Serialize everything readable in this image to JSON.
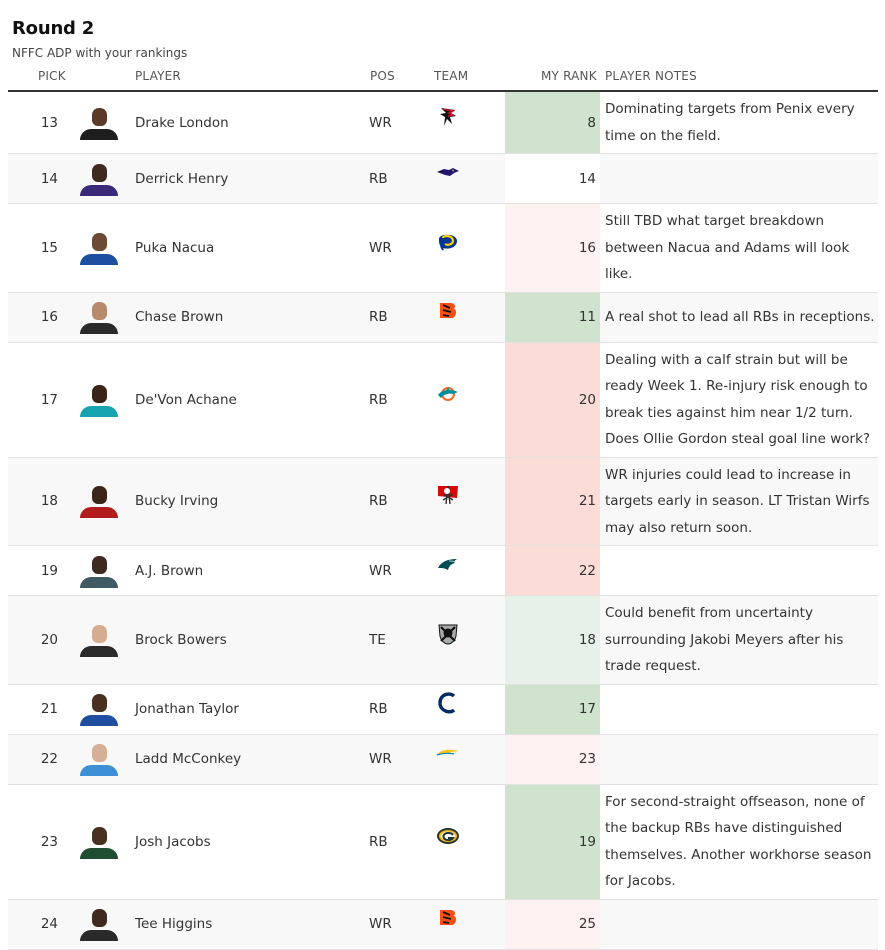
{
  "title": "Round 2",
  "subtitle": "NFFC ADP with your rankings",
  "headers": {
    "pick": "PICK",
    "player": "PLAYER",
    "pos": "POS",
    "team": "TEAM",
    "rank": "MY RANK",
    "notes": "PLAYER NOTES"
  },
  "colors": {
    "better": "#cfe3cf",
    "slightly_better": "#e7f1e7",
    "worse": "#fbdcd6",
    "slightly_worse": "#fdf2ef",
    "neutral": "#ffffff"
  },
  "rows": [
    {
      "pick": "13",
      "name": "Drake London",
      "pos": "WR",
      "team_icon": "falcons-logo-icon",
      "rank": "8",
      "rank_tone": "better",
      "notes": "Dominating targets from Penix every time on the field.",
      "skin": "#5a3b2a",
      "jersey": "#1e1e1e",
      "height": 59
    },
    {
      "pick": "14",
      "name": "Derrick Henry",
      "pos": "RB",
      "team_icon": "ravens-logo-icon",
      "rank": "14",
      "rank_tone": "neutral",
      "notes": "",
      "skin": "#3e2a20",
      "jersey": "#3b2a7a",
      "height": 50
    },
    {
      "pick": "15",
      "name": "Puka Nacua",
      "pos": "WR",
      "team_icon": "rams-logo-icon",
      "rank": "16",
      "rank_tone": "slightly_worse",
      "notes": "Still TBD what target breakdown between Nacua and Adams will look like.",
      "skin": "#6b4a36",
      "jersey": "#1d4fa0",
      "height": 59
    },
    {
      "pick": "16",
      "name": "Chase Brown",
      "pos": "RB",
      "team_icon": "bengals-logo-icon",
      "rank": "11",
      "rank_tone": "better",
      "notes": "A real shot to lead all RBs in receptions.",
      "skin": "#b88a6c",
      "jersey": "#2a2a2a",
      "height": 50
    },
    {
      "pick": "17",
      "name": "De'Von Achane",
      "pos": "RB",
      "team_icon": "dolphins-logo-icon",
      "rank": "20",
      "rank_tone": "worse",
      "notes": "Dealing with a calf strain but will be ready Week 1. Re-injury risk enough to break ties against him near 1/2 turn. Does Ollie Gordon steal goal line work?",
      "skin": "#3a2418",
      "jersey": "#18a3b0",
      "height": 112
    },
    {
      "pick": "18",
      "name": "Bucky Irving",
      "pos": "RB",
      "team_icon": "buccaneers-logo-icon",
      "rank": "21",
      "rank_tone": "worse",
      "notes": "WR injuries could lead to increase in targets early in season. LT Tristan Wirfs may also return soon.",
      "skin": "#3b2519",
      "jersey": "#b31c1c",
      "height": 86
    },
    {
      "pick": "19",
      "name": "A.J. Brown",
      "pos": "WR",
      "team_icon": "eagles-logo-icon",
      "rank": "22",
      "rank_tone": "worse",
      "notes": "",
      "skin": "#3e2a20",
      "jersey": "#3f5a62",
      "height": 50
    },
    {
      "pick": "20",
      "name": "Brock Bowers",
      "pos": "TE",
      "team_icon": "raiders-logo-icon",
      "rank": "18",
      "rank_tone": "slightly_better",
      "notes": "Could benefit from uncertainty surrounding Jakobi Meyers after his trade request.",
      "skin": "#d4ad90",
      "jersey": "#2a2a2a",
      "height": 59
    },
    {
      "pick": "21",
      "name": "Jonathan Taylor",
      "pos": "RB",
      "team_icon": "colts-logo-icon",
      "rank": "17",
      "rank_tone": "better",
      "notes": "",
      "skin": "#4a3020",
      "jersey": "#1f4ea0",
      "height": 50
    },
    {
      "pick": "22",
      "name": "Ladd McConkey",
      "pos": "WR",
      "team_icon": "chargers-logo-icon",
      "rank": "23",
      "rank_tone": "slightly_worse",
      "notes": "",
      "skin": "#d6b096",
      "jersey": "#3d8fd6",
      "height": 50
    },
    {
      "pick": "23",
      "name": "Josh Jacobs",
      "pos": "RB",
      "team_icon": "packers-logo-icon",
      "rank": "19",
      "rank_tone": "better",
      "notes": "For second-straight offseason, none of the backup RBs have distinguished themselves. Another workhorse season for Jacobs.",
      "skin": "#4a3020",
      "jersey": "#204e32",
      "height": 86
    },
    {
      "pick": "24",
      "name": "Tee Higgins",
      "pos": "WR",
      "team_icon": "bengals-logo-icon",
      "rank": "25",
      "rank_tone": "slightly_worse",
      "notes": "",
      "skin": "#3e2a20",
      "jersey": "#2a2a2a",
      "height": 50
    }
  ]
}
